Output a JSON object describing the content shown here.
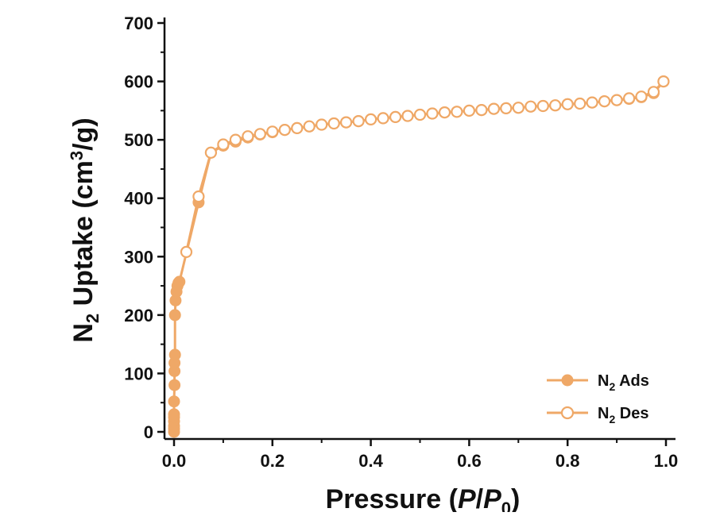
{
  "chart_data": {
    "type": "line",
    "title": "",
    "xlabel": "Pressure (P/P0)",
    "ylabel": "N2 Uptake (cm3/g)",
    "xlim": [
      0.0,
      1.0
    ],
    "ylim": [
      0,
      700
    ],
    "x_ticks": [
      "0.0",
      "0.2",
      "0.4",
      "0.6",
      "0.8",
      "1.0"
    ],
    "y_ticks": [
      "0",
      "100",
      "200",
      "300",
      "400",
      "500",
      "600",
      "700"
    ],
    "legend_position": "bottom-right",
    "grid": false,
    "series_color": "#EFA867",
    "series": [
      {
        "name": "N2 Ads",
        "marker": "filled-circle",
        "x": [
          0.0,
          0.0,
          0.0,
          0.0,
          0.0,
          0.0,
          0.0,
          0.001,
          0.001,
          0.001,
          0.002,
          0.002,
          0.003,
          0.005,
          0.007,
          0.009,
          0.011,
          0.05,
          0.075,
          0.1,
          0.125,
          0.15,
          0.175,
          0.2,
          0.225,
          0.25,
          0.275,
          0.3,
          0.325,
          0.35,
          0.375,
          0.4,
          0.425,
          0.45,
          0.475,
          0.5,
          0.525,
          0.55,
          0.575,
          0.6,
          0.625,
          0.65,
          0.675,
          0.7,
          0.725,
          0.75,
          0.775,
          0.8,
          0.825,
          0.85,
          0.875,
          0.9,
          0.925,
          0.95,
          0.975,
          0.995
        ],
        "y": [
          0,
          5,
          10,
          18,
          25,
          30,
          52,
          80,
          104,
          118,
          132,
          200,
          225,
          240,
          250,
          255,
          257,
          393,
          478,
          490,
          497,
          504,
          509,
          513,
          517,
          520,
          523,
          526,
          528,
          530,
          532,
          535,
          537,
          539,
          541,
          543,
          545,
          547,
          548,
          550,
          551,
          553,
          554,
          555,
          557,
          558,
          559,
          561,
          562,
          564,
          566,
          568,
          570,
          573,
          580,
          600
        ]
      },
      {
        "name": "N2 Des",
        "marker": "open-circle",
        "x": [
          0.995,
          0.975,
          0.95,
          0.925,
          0.9,
          0.875,
          0.85,
          0.825,
          0.8,
          0.775,
          0.75,
          0.725,
          0.7,
          0.675,
          0.65,
          0.625,
          0.6,
          0.575,
          0.55,
          0.525,
          0.5,
          0.475,
          0.45,
          0.425,
          0.4,
          0.375,
          0.35,
          0.325,
          0.3,
          0.275,
          0.25,
          0.225,
          0.2,
          0.175,
          0.15,
          0.125,
          0.1,
          0.075,
          0.05,
          0.025
        ],
        "y": [
          600,
          582,
          574,
          571,
          568,
          566,
          564,
          562,
          561,
          559,
          558,
          557,
          555,
          554,
          553,
          551,
          550,
          548,
          547,
          545,
          543,
          541,
          539,
          537,
          535,
          532,
          530,
          528,
          526,
          523,
          520,
          517,
          514,
          510,
          506,
          500,
          492,
          478,
          403,
          308
        ]
      }
    ]
  }
}
